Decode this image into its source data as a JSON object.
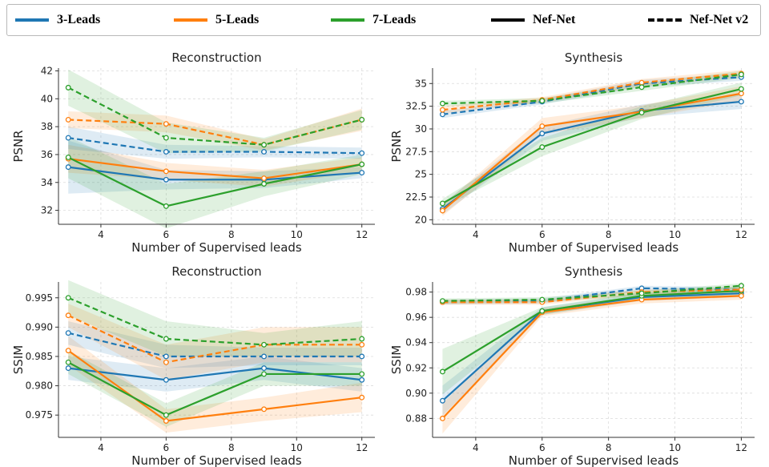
{
  "legend": [
    {
      "label": "3-Leads",
      "color": "#1f77b4",
      "style": "solid"
    },
    {
      "label": "5-Leads",
      "color": "#ff7f0e",
      "style": "solid"
    },
    {
      "label": "7-Leads",
      "color": "#2ca02c",
      "style": "solid"
    },
    {
      "label": "Nef-Net",
      "color": "#000000",
      "style": "solid"
    },
    {
      "label": "Nef-Net v2",
      "color": "#000000",
      "style": "dashed"
    }
  ],
  "chart_data": [
    {
      "type": "line",
      "title": "Reconstruction",
      "xlabel": "Number of Supervised leads",
      "ylabel": "PSNR",
      "xlim": [
        2.7,
        12.4
      ],
      "ylim": [
        31.0,
        42.2
      ],
      "xticks": [
        4,
        6,
        8,
        10,
        12
      ],
      "yticks": [
        32,
        34,
        36,
        38,
        40,
        42
      ],
      "x": [
        3,
        6,
        9,
        12
      ],
      "series": [
        {
          "name": "3-Leads Nef-Net",
          "color": "#1f77b4",
          "dash": false,
          "values": [
            35.1,
            34.2,
            34.2,
            34.7
          ],
          "band": [
            1.9,
            0.7,
            0.6,
            0.4
          ]
        },
        {
          "name": "5-Leads Nef-Net",
          "color": "#ff7f0e",
          "dash": false,
          "values": [
            35.7,
            34.8,
            34.3,
            35.3
          ],
          "band": [
            1.0,
            0.6,
            0.6,
            0.5
          ]
        },
        {
          "name": "7-Leads Nef-Net",
          "color": "#2ca02c",
          "dash": false,
          "values": [
            35.8,
            32.3,
            33.9,
            35.3
          ],
          "band": [
            1.5,
            1.6,
            0.9,
            0.7
          ]
        },
        {
          "name": "3-Leads Nef-Net v2",
          "color": "#1f77b4",
          "dash": true,
          "values": [
            37.2,
            36.2,
            36.2,
            36.1
          ],
          "band": [
            0.8,
            0.5,
            0.4,
            0.4
          ]
        },
        {
          "name": "5-Leads Nef-Net v2",
          "color": "#ff7f0e",
          "dash": true,
          "values": [
            38.5,
            38.2,
            36.7,
            38.5
          ],
          "band": [
            0.6,
            0.6,
            0.4,
            0.8
          ]
        },
        {
          "name": "7-Leads Nef-Net v2",
          "color": "#2ca02c",
          "dash": true,
          "values": [
            40.8,
            37.2,
            36.7,
            38.5
          ],
          "band": [
            1.3,
            1.1,
            0.5,
            0.7
          ]
        }
      ]
    },
    {
      "type": "line",
      "title": "Synthesis",
      "xlabel": "Number of Supervised leads",
      "ylabel": "PSNR",
      "xlim": [
        2.7,
        12.4
      ],
      "ylim": [
        19.5,
        36.7
      ],
      "xticks": [
        4,
        6,
        8,
        10,
        12
      ],
      "yticks": [
        20.0,
        22.5,
        25.0,
        27.5,
        30.0,
        32.5,
        35.0
      ],
      "x": [
        3,
        6,
        9,
        12
      ],
      "series": [
        {
          "name": "3-Leads Nef-Net",
          "color": "#1f77b4",
          "dash": false,
          "values": [
            21.2,
            29.5,
            32.0,
            33.0
          ],
          "band": [
            0.6,
            0.8,
            0.7,
            0.8
          ]
        },
        {
          "name": "5-Leads Nef-Net",
          "color": "#ff7f0e",
          "dash": false,
          "values": [
            21.0,
            30.3,
            31.9,
            33.9
          ],
          "band": [
            0.6,
            0.9,
            0.7,
            0.8
          ]
        },
        {
          "name": "7-Leads Nef-Net",
          "color": "#2ca02c",
          "dash": false,
          "values": [
            21.8,
            28.0,
            31.8,
            34.4
          ],
          "band": [
            0.5,
            1.0,
            0.7,
            0.7
          ]
        },
        {
          "name": "3-Leads Nef-Net v2",
          "color": "#1f77b4",
          "dash": true,
          "values": [
            31.6,
            33.0,
            35.0,
            35.7
          ],
          "band": [
            0.4,
            0.3,
            0.4,
            0.4
          ]
        },
        {
          "name": "5-Leads Nef-Net v2",
          "color": "#ff7f0e",
          "dash": true,
          "values": [
            32.1,
            33.2,
            35.1,
            36.1
          ],
          "band": [
            0.4,
            0.3,
            0.4,
            0.4
          ]
        },
        {
          "name": "7-Leads Nef-Net v2",
          "color": "#2ca02c",
          "dash": true,
          "values": [
            32.8,
            33.1,
            34.6,
            36.0
          ],
          "band": [
            0.3,
            0.3,
            0.4,
            0.4
          ]
        }
      ]
    },
    {
      "type": "line",
      "title": "Reconstruction",
      "xlabel": "Number of Supervised leads",
      "ylabel": "SSIM",
      "xlim": [
        2.7,
        12.4
      ],
      "ylim": [
        0.9712,
        0.9977
      ],
      "xticks": [
        4,
        6,
        8,
        10,
        12
      ],
      "yticks": [
        0.975,
        0.98,
        0.985,
        0.99,
        0.995
      ],
      "ytick_labels": [
        "0.975",
        "0.980",
        "0.985",
        "0.990",
        "0.995"
      ],
      "x": [
        3,
        6,
        9,
        12
      ],
      "series": [
        {
          "name": "3-Leads Nef-Net",
          "color": "#1f77b4",
          "dash": false,
          "values": [
            0.983,
            0.981,
            0.983,
            0.981
          ],
          "band": [
            0.002,
            0.002,
            0.002,
            0.002
          ]
        },
        {
          "name": "5-Leads Nef-Net",
          "color": "#ff7f0e",
          "dash": false,
          "values": [
            0.986,
            0.974,
            0.976,
            0.978
          ],
          "band": [
            0.0025,
            0.002,
            0.002,
            0.0025
          ]
        },
        {
          "name": "7-Leads Nef-Net",
          "color": "#2ca02c",
          "dash": false,
          "values": [
            0.984,
            0.975,
            0.982,
            0.982
          ],
          "band": [
            0.002,
            0.002,
            0.002,
            0.002
          ]
        },
        {
          "name": "3-Leads Nef-Net v2",
          "color": "#1f77b4",
          "dash": true,
          "values": [
            0.989,
            0.985,
            0.985,
            0.985
          ],
          "band": [
            0.002,
            0.002,
            0.0015,
            0.0015
          ]
        },
        {
          "name": "5-Leads Nef-Net v2",
          "color": "#ff7f0e",
          "dash": true,
          "values": [
            0.992,
            0.984,
            0.987,
            0.987
          ],
          "band": [
            0.002,
            0.003,
            0.003,
            0.003
          ]
        },
        {
          "name": "7-Leads Nef-Net v2",
          "color": "#2ca02c",
          "dash": true,
          "values": [
            0.995,
            0.988,
            0.987,
            0.988
          ],
          "band": [
            0.003,
            0.003,
            0.002,
            0.003
          ]
        }
      ]
    },
    {
      "type": "line",
      "title": "Synthesis",
      "xlabel": "Number of Supervised leads",
      "ylabel": "SSIM",
      "xlim": [
        2.7,
        12.4
      ],
      "ylim": [
        0.865,
        0.988
      ],
      "xticks": [
        4,
        6,
        8,
        10,
        12
      ],
      "yticks": [
        0.88,
        0.9,
        0.92,
        0.94,
        0.96,
        0.98
      ],
      "ytick_labels": [
        "0.88",
        "0.90",
        "0.92",
        "0.94",
        "0.96",
        "0.98"
      ],
      "x": [
        3,
        6,
        9,
        12
      ],
      "series": [
        {
          "name": "3-Leads Nef-Net",
          "color": "#1f77b4",
          "dash": false,
          "values": [
            0.894,
            0.965,
            0.976,
            0.979
          ],
          "band": [
            0.012,
            0.003,
            0.003,
            0.003
          ]
        },
        {
          "name": "5-Leads Nef-Net",
          "color": "#ff7f0e",
          "dash": false,
          "values": [
            0.88,
            0.964,
            0.974,
            0.977
          ],
          "band": [
            0.012,
            0.003,
            0.003,
            0.003
          ]
        },
        {
          "name": "7-Leads Nef-Net",
          "color": "#2ca02c",
          "dash": false,
          "values": [
            0.917,
            0.965,
            0.977,
            0.981
          ],
          "band": [
            0.018,
            0.003,
            0.003,
            0.003
          ]
        },
        {
          "name": "3-Leads Nef-Net v2",
          "color": "#1f77b4",
          "dash": true,
          "values": [
            0.972,
            0.973,
            0.983,
            0.982
          ],
          "band": [
            0.002,
            0.002,
            0.002,
            0.002
          ]
        },
        {
          "name": "5-Leads Nef-Net v2",
          "color": "#ff7f0e",
          "dash": true,
          "values": [
            0.972,
            0.972,
            0.98,
            0.982
          ],
          "band": [
            0.002,
            0.002,
            0.002,
            0.002
          ]
        },
        {
          "name": "7-Leads Nef-Net v2",
          "color": "#2ca02c",
          "dash": true,
          "values": [
            0.973,
            0.974,
            0.979,
            0.985
          ],
          "band": [
            0.002,
            0.002,
            0.002,
            0.002
          ]
        }
      ]
    }
  ]
}
